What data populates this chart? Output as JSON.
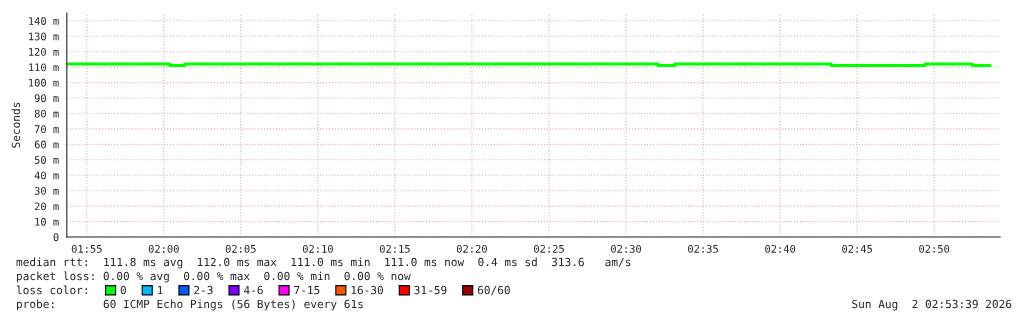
{
  "chart_data": {
    "type": "step",
    "ylabel": "Seconds",
    "x": [
      1.8951,
      2.0065,
      2.0227,
      2.5346,
      2.553,
      2.7219,
      2.8236,
      2.8745,
      2.894
    ],
    "series": [
      {
        "name": "0",
        "color": "#00ff00",
        "values": [
          112,
          111,
          112,
          111,
          112,
          111,
          112,
          111,
          111
        ]
      },
      {
        "name": "1",
        "color": "#00b8ff",
        "values": [
          null,
          null,
          null,
          null,
          null,
          null,
          null,
          null,
          null
        ]
      },
      {
        "name": "2-3",
        "color": "#0059ff",
        "values": [
          null,
          null,
          null,
          null,
          null,
          null,
          null,
          null,
          null
        ]
      },
      {
        "name": "4-6",
        "color": "#7e00ff",
        "values": [
          null,
          null,
          null,
          null,
          null,
          null,
          null,
          null,
          null
        ]
      },
      {
        "name": "7-15",
        "color": "#ff00ff",
        "values": [
          null,
          null,
          null,
          null,
          null,
          null,
          null,
          null,
          null
        ]
      },
      {
        "name": "16-30",
        "color": "#ff5500",
        "values": [
          null,
          null,
          null,
          null,
          null,
          null,
          null,
          null,
          null
        ]
      },
      {
        "name": "31-59",
        "color": "#ff0000",
        "values": [
          null,
          null,
          null,
          null,
          null,
          null,
          null,
          null,
          null
        ]
      },
      {
        "name": "60/60",
        "color": "#a10000",
        "values": [
          null,
          null,
          null,
          null,
          null,
          null,
          null,
          null,
          null
        ]
      }
    ],
    "xlim": [
      1.8951,
      2.9048
    ],
    "xticks": [
      {
        "value": 1.9167,
        "label": "01:55"
      },
      {
        "value": 2.0,
        "label": "02:00"
      },
      {
        "value": 2.0833,
        "label": "02:05"
      },
      {
        "value": 2.1667,
        "label": "02:10"
      },
      {
        "value": 2.25,
        "label": "02:15"
      },
      {
        "value": 2.3333,
        "label": "02:20"
      },
      {
        "value": 2.4167,
        "label": "02:25"
      },
      {
        "value": 2.5,
        "label": "02:30"
      },
      {
        "value": 2.5833,
        "label": "02:35"
      },
      {
        "value": 2.6667,
        "label": "02:40"
      },
      {
        "value": 2.75,
        "label": "02:45"
      },
      {
        "value": 2.8333,
        "label": "02:50"
      }
    ],
    "ylim": [
      0,
      145
    ],
    "yticks": [
      0,
      {
        "value": 10,
        "label": "10 m"
      },
      {
        "value": 20,
        "label": "20 m"
      },
      {
        "value": 30,
        "label": "30 m"
      },
      {
        "value": 40,
        "label": "40 m"
      },
      {
        "value": 50,
        "label": "50 m"
      },
      {
        "value": 60,
        "label": "60 m"
      },
      {
        "value": 70,
        "label": "70 m"
      },
      {
        "value": 80,
        "label": "80 m"
      },
      {
        "value": 90,
        "label": "90 m"
      },
      {
        "value": 100,
        "label": "100 m"
      },
      {
        "value": 110,
        "label": "110 m"
      },
      {
        "value": 120,
        "label": "120 m"
      },
      {
        "value": 130,
        "label": "130 m"
      },
      {
        "value": 140,
        "label": "140 m"
      }
    ],
    "grid": true,
    "line_style": "solid",
    "legend": "bottom",
    "legend_title": "loss color:",
    "annotations": [
      "median rtt:  111.8 ms avg  112.0 ms max  111.0 ms min  111.0 ms now  0.4 ms sd  313.6   am/s",
      "packet loss: 0.00 % avg  0.00 % max  0.00 % min  0.00 % now",
      "probe:       60 ICMP Echo Pings (56 Bytes) every 61s",
      "Sun Aug  2 02:53:39 2026"
    ]
  }
}
